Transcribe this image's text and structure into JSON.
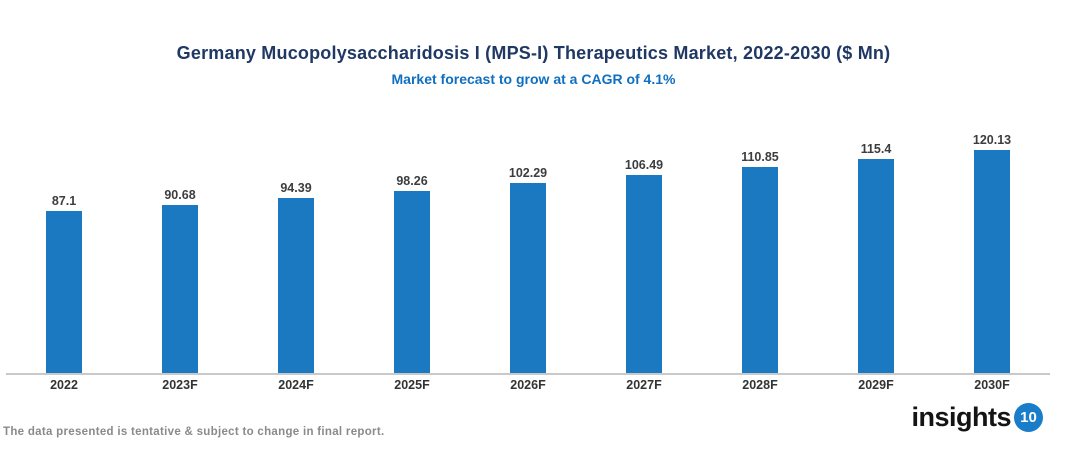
{
  "header": {
    "title": "Germany Mucopolysaccharidosis I (MPS-I) Therapeutics Market, 2022-2030 ($ Mn)",
    "subtitle": "Market forecast to grow at a CAGR of 4.1%"
  },
  "chart_data": {
    "type": "bar",
    "categories": [
      "2022",
      "2023F",
      "2024F",
      "2025F",
      "2026F",
      "2027F",
      "2028F",
      "2029F",
      "2030F"
    ],
    "values": [
      87.1,
      90.68,
      94.39,
      98.26,
      102.29,
      106.49,
      110.85,
      115.4,
      120.13
    ],
    "title": "Germany Mucopolysaccharidosis I (MPS-I) Therapeutics Market, 2022-2030 ($ Mn)",
    "subtitle": "Market forecast to grow at a CAGR of 4.1%",
    "xlabel": "",
    "ylabel": "",
    "ylim": [
      0,
      130
    ],
    "grid": false,
    "legend": "none",
    "data_labels": true,
    "bar_color": "#1b79c1"
  },
  "footer": {
    "note": "The data presented is tentative & subject to change in final report.",
    "logo_text": "insights",
    "logo_number": "10"
  },
  "colors": {
    "bar": "#1b79c1",
    "title": "#1f3864",
    "subtitle": "#0f6fc0",
    "axis_line": "#c9c9c9",
    "value_label": "#3d3d3d",
    "footnote": "#8a8a8a",
    "logo_circle": "#1a7dc9"
  }
}
